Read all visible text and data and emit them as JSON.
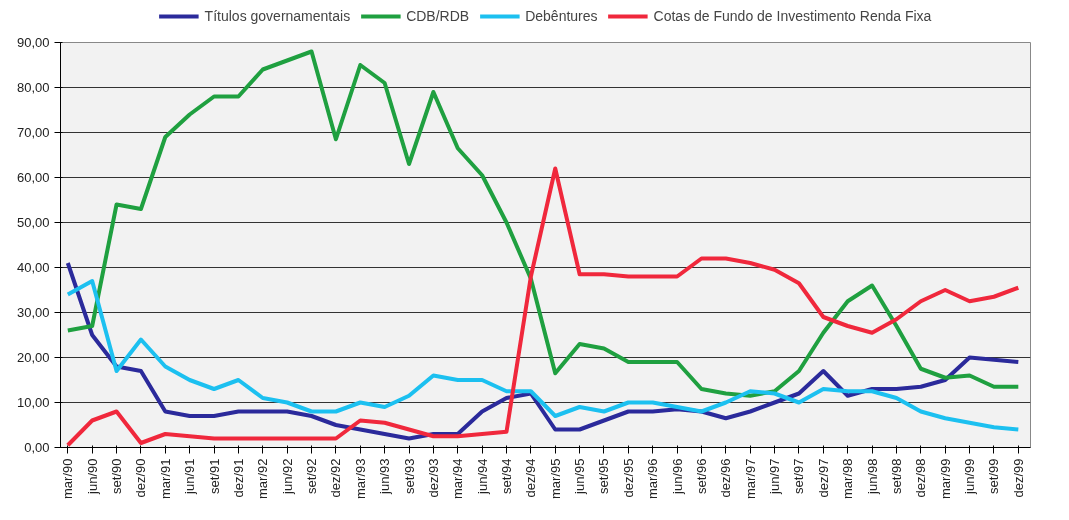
{
  "chart_data": {
    "type": "line",
    "categories": [
      "mar/90",
      "jun/90",
      "set/90",
      "dez/90",
      "mar/91",
      "jun/91",
      "set/91",
      "dez/91",
      "mar/92",
      "jun/92",
      "set/92",
      "dez/92",
      "mar/93",
      "jun/93",
      "set/93",
      "dez/93",
      "mar/94",
      "jun/94",
      "set/94",
      "dez/94",
      "mar/95",
      "jun/95",
      "set/95",
      "dez/95",
      "mar/96",
      "jun/96",
      "set/96",
      "dez/96",
      "mar/97",
      "jun/97",
      "set/97",
      "dez/97",
      "mar/98",
      "jun/98",
      "set/98",
      "dez/98",
      "mar/99",
      "jun/99",
      "set/99",
      "dez/99"
    ],
    "series": [
      {
        "name": "Títulos governamentais",
        "color": "#2b2a9b",
        "values": [
          41,
          25,
          18,
          17,
          8,
          7,
          7,
          8,
          8,
          8,
          7,
          5,
          4,
          3,
          2,
          3,
          3,
          8,
          11,
          12,
          4,
          4,
          6,
          8,
          8,
          8.5,
          8,
          6.5,
          8,
          10,
          12,
          17,
          11.5,
          13,
          13,
          13.5,
          15,
          20,
          19.5,
          19
        ]
      },
      {
        "name": "CDB/RDB",
        "color": "#1fa040",
        "values": [
          26,
          27,
          54,
          53,
          69,
          74,
          78,
          78,
          84,
          86,
          88,
          68.5,
          85,
          81,
          63,
          79,
          66.5,
          60.5,
          50,
          37.5,
          16.5,
          23,
          22,
          19,
          19,
          19,
          13,
          12,
          11.5,
          12.5,
          17,
          25.5,
          32.5,
          36,
          27,
          17.5,
          15.5,
          16,
          13.5,
          13.5
        ]
      },
      {
        "name": "Debêntures",
        "color": "#1cc0f0",
        "values": [
          34,
          37,
          17,
          24,
          18,
          15,
          13,
          15,
          11,
          10,
          8,
          8,
          10,
          9,
          11.5,
          16,
          15,
          15,
          12.5,
          12.5,
          7,
          9,
          8,
          10,
          10,
          9,
          8,
          10,
          12.5,
          12,
          10,
          13,
          12.5,
          12.5,
          11,
          8,
          6.5,
          5.5,
          4.5,
          4
        ]
      },
      {
        "name": "Cotas de Fundo de Investimento Renda Fixa",
        "color": "#f0283c",
        "values": [
          0.5,
          6,
          8,
          1,
          3,
          2.5,
          2,
          2,
          2,
          2,
          2,
          2,
          6,
          5.5,
          4,
          2.5,
          2.5,
          3,
          3.5,
          38,
          62,
          38.5,
          38.5,
          38,
          38,
          38,
          42,
          42,
          41,
          39.5,
          36.5,
          29,
          27,
          25.5,
          28.5,
          32.5,
          35,
          32.5,
          33.5,
          35.5
        ]
      }
    ],
    "ylim": [
      0,
      90
    ],
    "yticks": [
      {
        "value": 0,
        "label": "0,00"
      },
      {
        "value": 10,
        "label": "10,00"
      },
      {
        "value": 20,
        "label": "20,00"
      },
      {
        "value": 30,
        "label": "30,00"
      },
      {
        "value": 40,
        "label": "40,00"
      },
      {
        "value": 50,
        "label": "50,00"
      },
      {
        "value": 60,
        "label": "60,00"
      },
      {
        "value": 70,
        "label": "70,00"
      },
      {
        "value": 80,
        "label": "80,00"
      },
      {
        "value": 90,
        "label": "90,00"
      }
    ],
    "grid": "y",
    "legend": "top",
    "marker": "none",
    "line_style": "solid"
  }
}
